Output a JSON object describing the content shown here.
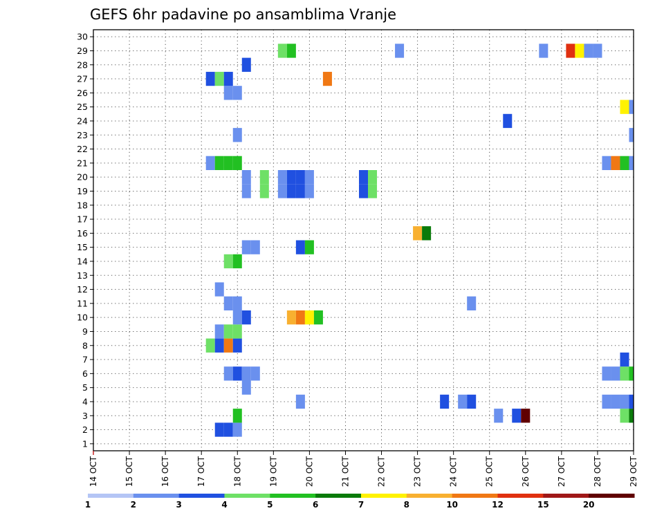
{
  "chart_data": {
    "type": "heatmap",
    "title": "GEFS 6hr padavine po ansamblima Vranje",
    "xlabel": "",
    "ylabel": "",
    "x_tick_labels": [
      "14 OCT",
      "15 OCT",
      "16 OCT",
      "17 OCT",
      "18 OCT",
      "19 OCT",
      "20 OCT",
      "21 OCT",
      "22 OCT",
      "23 OCT",
      "24 OCT",
      "25 OCT",
      "26 OCT",
      "27 OCT",
      "28 OCT",
      "29 OCT"
    ],
    "y_tick_labels": [
      "1",
      "2",
      "3",
      "4",
      "5",
      "6",
      "7",
      "8",
      "9",
      "10",
      "11",
      "12",
      "13",
      "14",
      "15",
      "16",
      "17",
      "18",
      "19",
      "20",
      "21",
      "22",
      "23",
      "24",
      "25",
      "26",
      "27",
      "28",
      "29",
      "30"
    ],
    "xlim": [
      0,
      60
    ],
    "ylim": [
      0.5,
      30.5
    ],
    "x_unit": "6-hour steps from 14 OCT 00Z",
    "y_unit": "ensemble member",
    "grid": true,
    "colorbar": {
      "placement": "bottom",
      "labels": [
        "1",
        "2",
        "3",
        "4",
        "5",
        "6",
        "7",
        "8",
        "10",
        "12",
        "15",
        "20"
      ],
      "colors": [
        "#b4c5f5",
        "#6a90ee",
        "#2050e0",
        "#6ee066",
        "#22c022",
        "#0a7a0a",
        "#fff200",
        "#f8b030",
        "#f07814",
        "#e03010",
        "#a01818",
        "#600000"
      ]
    },
    "cells": [
      [
        14,
        2,
        2
      ],
      [
        15,
        2,
        2
      ],
      [
        16,
        2,
        1
      ],
      [
        16,
        3,
        4
      ],
      [
        45,
        3,
        1
      ],
      [
        47,
        3,
        2
      ],
      [
        48,
        3,
        11
      ],
      [
        59,
        3,
        3
      ],
      [
        60,
        3,
        5
      ],
      [
        23,
        4,
        1
      ],
      [
        39,
        4,
        2
      ],
      [
        41,
        4,
        1
      ],
      [
        42,
        4,
        2
      ],
      [
        57,
        4,
        1
      ],
      [
        58,
        4,
        1
      ],
      [
        59,
        4,
        1
      ],
      [
        60,
        4,
        2
      ],
      [
        17,
        5,
        1
      ],
      [
        15,
        6,
        1
      ],
      [
        16,
        6,
        2
      ],
      [
        17,
        6,
        1
      ],
      [
        18,
        6,
        1
      ],
      [
        57,
        6,
        1
      ],
      [
        58,
        6,
        1
      ],
      [
        59,
        6,
        3
      ],
      [
        60,
        6,
        4
      ],
      [
        59,
        7,
        2
      ],
      [
        13,
        8,
        3
      ],
      [
        14,
        8,
        2
      ],
      [
        15,
        8,
        8
      ],
      [
        16,
        8,
        2
      ],
      [
        14,
        9,
        1
      ],
      [
        15,
        9,
        3
      ],
      [
        16,
        9,
        3
      ],
      [
        16,
        10,
        1
      ],
      [
        17,
        10,
        2
      ],
      [
        22,
        10,
        7
      ],
      [
        23,
        10,
        8
      ],
      [
        24,
        10,
        6
      ],
      [
        25,
        10,
        4
      ],
      [
        15,
        11,
        1
      ],
      [
        16,
        11,
        1
      ],
      [
        42,
        11,
        1
      ],
      [
        14,
        12,
        1
      ],
      [
        15,
        14,
        3
      ],
      [
        16,
        14,
        4
      ],
      [
        17,
        15,
        1
      ],
      [
        18,
        15,
        1
      ],
      [
        23,
        15,
        2
      ],
      [
        24,
        15,
        4
      ],
      [
        36,
        16,
        7
      ],
      [
        37,
        16,
        5
      ],
      [
        17,
        19,
        1
      ],
      [
        19,
        19,
        3
      ],
      [
        21,
        19,
        1
      ],
      [
        22,
        19,
        2
      ],
      [
        23,
        19,
        2
      ],
      [
        24,
        19,
        1
      ],
      [
        30,
        19,
        2
      ],
      [
        31,
        19,
        3
      ],
      [
        17,
        20,
        1
      ],
      [
        19,
        20,
        3
      ],
      [
        21,
        20,
        1
      ],
      [
        22,
        20,
        2
      ],
      [
        23,
        20,
        2
      ],
      [
        24,
        20,
        1
      ],
      [
        30,
        20,
        2
      ],
      [
        31,
        20,
        3
      ],
      [
        13,
        21,
        1
      ],
      [
        14,
        21,
        4
      ],
      [
        15,
        21,
        4
      ],
      [
        16,
        21,
        4
      ],
      [
        57,
        21,
        1
      ],
      [
        58,
        21,
        8
      ],
      [
        59,
        21,
        4
      ],
      [
        60,
        21,
        1
      ],
      [
        16,
        23,
        1
      ],
      [
        60,
        23,
        1
      ],
      [
        46,
        24,
        2
      ],
      [
        59,
        25,
        6
      ],
      [
        60,
        25,
        1
      ],
      [
        15,
        26,
        1
      ],
      [
        16,
        26,
        1
      ],
      [
        13,
        27,
        2
      ],
      [
        14,
        27,
        3
      ],
      [
        15,
        27,
        2
      ],
      [
        26,
        27,
        8
      ],
      [
        17,
        28,
        2
      ],
      [
        21,
        29,
        3
      ],
      [
        22,
        29,
        4
      ],
      [
        34,
        29,
        1
      ],
      [
        50,
        29,
        1
      ],
      [
        53,
        29,
        9
      ],
      [
        54,
        29,
        6
      ],
      [
        55,
        29,
        1
      ],
      [
        56,
        29,
        1
      ]
    ]
  }
}
